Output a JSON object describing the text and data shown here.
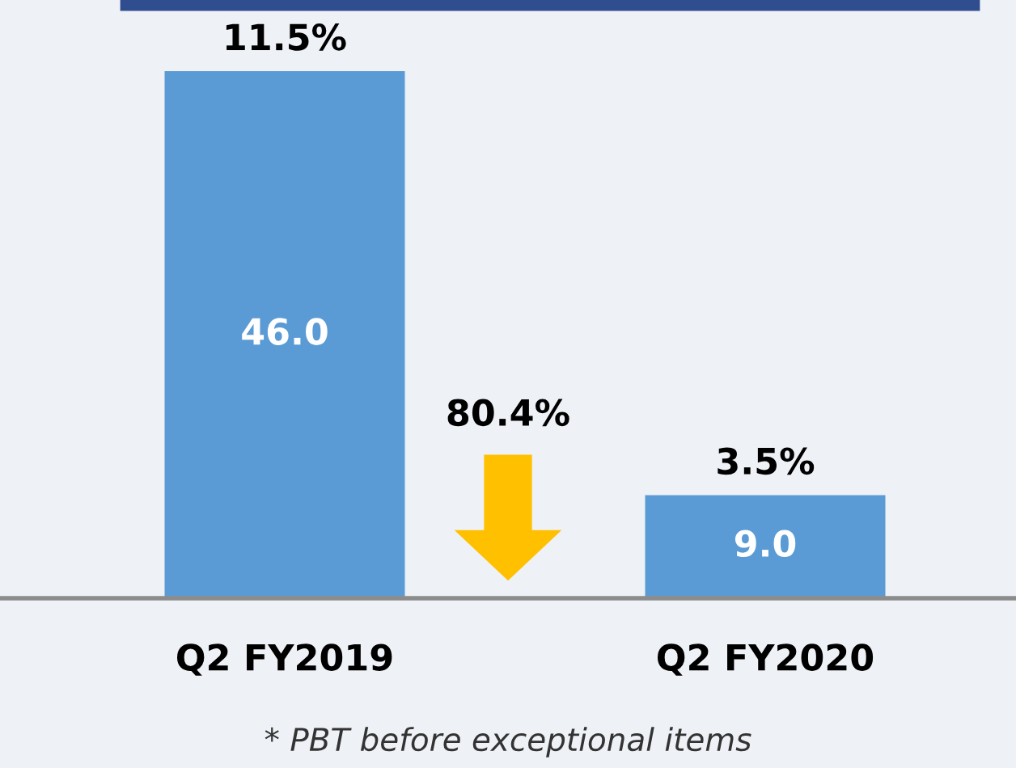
{
  "chart_data": {
    "type": "bar",
    "categories": [
      "Q2 FY2019",
      "Q2 FY2020"
    ],
    "values": [
      46.0,
      9.0
    ],
    "color": "#5b9bd5",
    "value_labels": [
      "46.0",
      "9.0"
    ],
    "annotations": [
      {
        "text": "11.5%",
        "x": "Q2 FY2019",
        "y": 46.0
      },
      {
        "text": "3.5%",
        "x": "Q2 FY2020",
        "y": 9.0
      },
      "80.4%",
      "* PBT before exceptional items"
    ]
  }
}
